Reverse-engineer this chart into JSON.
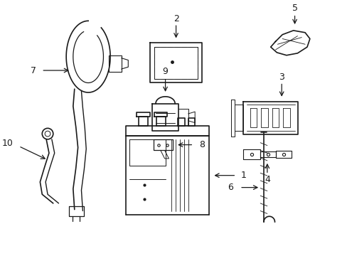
{
  "background_color": "#ffffff",
  "line_color": "#1a1a1a",
  "line_width": 1.2
}
